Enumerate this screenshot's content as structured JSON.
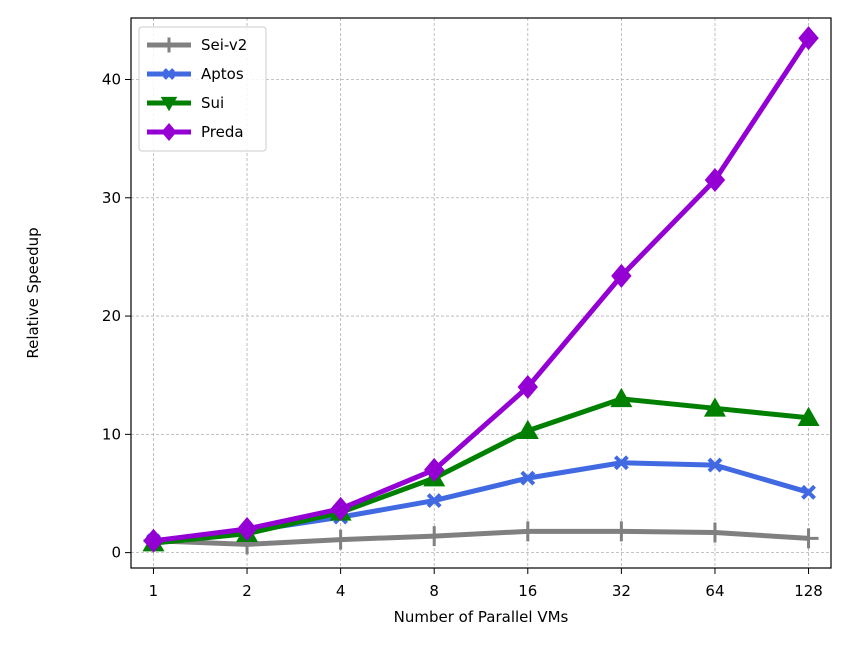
{
  "chart_data": {
    "type": "line",
    "title": "",
    "xlabel": "Number of Parallel VMs",
    "ylabel": "Relative Speedup",
    "categories": [
      "1",
      "2",
      "4",
      "8",
      "16",
      "32",
      "64",
      "128"
    ],
    "ylim": [
      -1.3,
      45.2
    ],
    "yticks": [
      0,
      10,
      20,
      30,
      40
    ],
    "grid": true,
    "legend_position": "top-left",
    "series": [
      {
        "name": "Sei-v2",
        "color": "#808080",
        "marker": "plus",
        "values": [
          1.0,
          0.7,
          1.1,
          1.4,
          1.8,
          1.8,
          1.7,
          1.2
        ]
      },
      {
        "name": "Aptos",
        "color": "#4169e1",
        "marker": "x",
        "values": [
          1.0,
          1.8,
          3.0,
          4.4,
          6.3,
          7.6,
          7.4,
          5.1
        ]
      },
      {
        "name": "Sui",
        "color": "#008000",
        "marker": "triangle",
        "values": [
          0.8,
          1.6,
          3.4,
          6.3,
          10.3,
          13.0,
          12.2,
          11.4
        ]
      },
      {
        "name": "Preda",
        "color": "#9400d3",
        "marker": "diamond",
        "values": [
          1.0,
          2.0,
          3.7,
          7.0,
          14.0,
          23.4,
          31.5,
          43.5
        ]
      }
    ]
  }
}
